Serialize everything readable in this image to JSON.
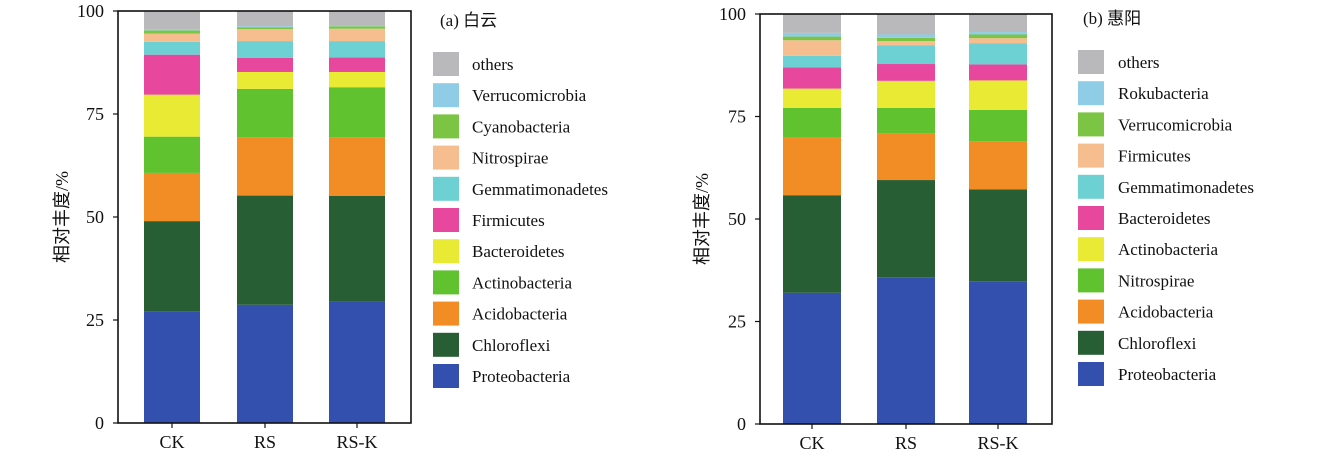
{
  "chart_data": [
    {
      "type": "bar",
      "stacked": true,
      "title": "(a) 白云",
      "ylabel": "相对丰度/%",
      "xlabel": "",
      "ylim": [
        0,
        100
      ],
      "yticks": [
        0,
        25,
        50,
        75,
        100
      ],
      "categories": [
        "CK",
        "RS",
        "RS-K"
      ],
      "legend_position": "right",
      "series": [
        {
          "name": "Proteobacteria",
          "color": "#3450AE",
          "values": [
            27.0,
            28.7,
            29.4
          ]
        },
        {
          "name": "Chloroflexi",
          "color": "#285E33",
          "values": [
            22.0,
            26.5,
            25.7
          ]
        },
        {
          "name": "Acidobacteria",
          "color": "#F28D25",
          "values": [
            11.7,
            14.2,
            14.3
          ]
        },
        {
          "name": "Actinobacteria",
          "color": "#5FC22E",
          "values": [
            8.8,
            11.7,
            12.1
          ]
        },
        {
          "name": "Bacteroidetes",
          "color": "#E9EA33",
          "values": [
            10.2,
            4.1,
            3.7
          ]
        },
        {
          "name": "Firmicutes",
          "color": "#E8479E",
          "values": [
            9.7,
            3.4,
            3.5
          ]
        },
        {
          "name": "Gemmatimonadetes",
          "color": "#6DD1D4",
          "values": [
            3.1,
            4.1,
            4.0
          ]
        },
        {
          "name": "Nitrospirae",
          "color": "#F6BE8E",
          "values": [
            2.0,
            2.9,
            3.0
          ]
        },
        {
          "name": "Cyanobacteria",
          "color": "#7CC544",
          "values": [
            0.8,
            0.4,
            0.6
          ]
        },
        {
          "name": "Verrucomicrobia",
          "color": "#8FCDE6",
          "values": [
            0.3,
            0.3,
            0.3
          ]
        },
        {
          "name": "others",
          "color": "#B9B9BB",
          "values": [
            4.4,
            3.7,
            3.4
          ]
        }
      ]
    },
    {
      "type": "bar",
      "stacked": true,
      "title": "(b) 惠阳",
      "ylabel": "相对丰度/%",
      "xlabel": "",
      "ylim": [
        0,
        100
      ],
      "yticks": [
        0,
        25,
        50,
        75,
        100
      ],
      "categories": [
        "CK",
        "RS",
        "RS-K"
      ],
      "legend_position": "right",
      "series": [
        {
          "name": "Proteobacteria",
          "color": "#3450AE",
          "values": [
            32.0,
            35.8,
            34.8
          ]
        },
        {
          "name": "Chloroflexi",
          "color": "#285E33",
          "values": [
            23.8,
            23.7,
            22.4
          ]
        },
        {
          "name": "Acidobacteria",
          "color": "#F28D25",
          "values": [
            14.0,
            11.3,
            11.8
          ]
        },
        {
          "name": "Nitrospirae",
          "color": "#5FC22E",
          "values": [
            7.3,
            6.3,
            7.6
          ]
        },
        {
          "name": "Actinobacteria",
          "color": "#E9EA33",
          "values": [
            4.7,
            6.6,
            7.2
          ]
        },
        {
          "name": "Bacteroidetes",
          "color": "#E8479E",
          "values": [
            5.2,
            4.1,
            3.9
          ]
        },
        {
          "name": "Gemmatimonadetes",
          "color": "#6DD1D4",
          "values": [
            2.8,
            4.6,
            5.2
          ]
        },
        {
          "name": "Firmicutes",
          "color": "#F6BE8E",
          "values": [
            3.8,
            1.0,
            1.2
          ]
        },
        {
          "name": "Verrucomicrobia",
          "color": "#7CC544",
          "values": [
            0.9,
            0.8,
            0.9
          ]
        },
        {
          "name": "Rokubacteria",
          "color": "#8FCDE6",
          "values": [
            0.9,
            0.8,
            0.6
          ]
        },
        {
          "name": "others",
          "color": "#B9B9BB",
          "values": [
            4.6,
            5.0,
            4.4
          ]
        }
      ]
    }
  ]
}
